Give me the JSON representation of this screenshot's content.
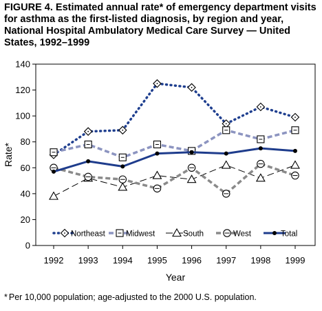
{
  "figure": {
    "title": "FIGURE 4. Estimated annual rate* of emergency department visits for asthma as the first-listed diagnosis, by region and year, National Hospital Ambulatory Medical Care Survey — United States, 1992–1999",
    "footnote_mark": "*",
    "footnote": "Per 10,000 population; age-adjusted to the 2000 U.S. population."
  },
  "chart_data": {
    "type": "line",
    "title": "FIGURE 4. Estimated annual rate* of emergency department visits for asthma as the first-listed diagnosis, by region and year, National Hospital Ambulatory Medical Care Survey — United States, 1992–1999",
    "xlabel": "Year",
    "ylabel": "Rate*",
    "x": [
      "1992",
      "1993",
      "1994",
      "1995",
      "1996",
      "1997",
      "1998",
      "1999"
    ],
    "ylim": [
      0,
      140
    ],
    "yticks": [
      "0",
      "20",
      "40",
      "60",
      "80",
      "100",
      "120",
      "140"
    ],
    "grid": false,
    "legend_position": "inside-bottom",
    "series": [
      {
        "name": "Northeast",
        "values": [
          70,
          88,
          89,
          125,
          122,
          94,
          107,
          99
        ],
        "color": "#1f3f8f",
        "line": "dotted-heavy",
        "marker": "diamond"
      },
      {
        "name": "Midwest",
        "values": [
          72,
          78,
          68,
          78,
          73,
          89,
          82,
          89
        ],
        "color": "#8c94c0",
        "line": "dashed-heavy",
        "marker": "square"
      },
      {
        "name": "South",
        "values": [
          38,
          52,
          45,
          54,
          51,
          62,
          52,
          62
        ],
        "color": "#000000",
        "line": "long-dash-thin",
        "marker": "triangle"
      },
      {
        "name": "West",
        "values": [
          60,
          53,
          51,
          44,
          60,
          40,
          63,
          54
        ],
        "color": "#8a8a8a",
        "line": "dashed-heavy",
        "marker": "circle-cross"
      },
      {
        "name": "Total",
        "values": [
          57,
          65,
          61,
          71,
          72,
          71,
          75,
          73
        ],
        "color": "#1e3c8c",
        "line": "solid-heavy",
        "marker": "dot"
      }
    ]
  }
}
